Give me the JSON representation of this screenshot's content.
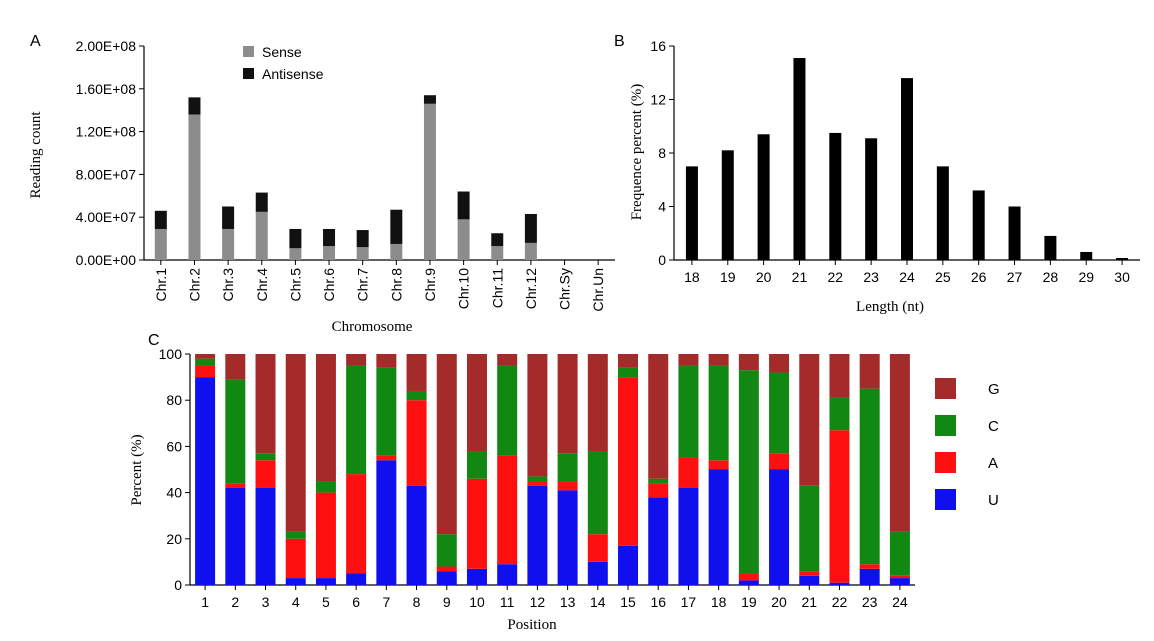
{
  "chart_data": [
    {
      "panel_label": "A",
      "type": "bar",
      "stacked": true,
      "categories": [
        "Chr.1",
        "Chr.2",
        "Chr.3",
        "Chr.4",
        "Chr.5",
        "Chr.6",
        "Chr.7",
        "Chr.8",
        "Chr.9",
        "Chr.10",
        "Chr.11",
        "Chr.12",
        "Chr.Sy",
        "Chr.Un"
      ],
      "series": [
        {
          "name": "Sense",
          "color": "#8c8c8c",
          "values": [
            29000000,
            136000000,
            29000000,
            45000000,
            11000000,
            13000000,
            12000000,
            15000000,
            146000000,
            38000000,
            13000000,
            16000000,
            0,
            0
          ]
        },
        {
          "name": "Antisense",
          "color": "#111111",
          "values": [
            17000000,
            16000000,
            21000000,
            18000000,
            18000000,
            16000000,
            16000000,
            32000000,
            8000000,
            26000000,
            12000000,
            27000000,
            0,
            0
          ]
        }
      ],
      "xlabel": "Chromosome",
      "ylabel": "Reading count",
      "ylim": [
        0,
        200000000
      ],
      "yticks": [
        "0.00E+00",
        "4.00E+07",
        "8.00E+07",
        "1.20E+08",
        "1.60E+08",
        "2.00E+08"
      ],
      "legend_position": "top-left"
    },
    {
      "panel_label": "B",
      "type": "bar",
      "categories": [
        "18",
        "19",
        "20",
        "21",
        "22",
        "23",
        "24",
        "25",
        "26",
        "27",
        "28",
        "29",
        "30"
      ],
      "values": [
        7.0,
        8.2,
        9.4,
        15.1,
        9.5,
        9.1,
        13.6,
        7.0,
        5.2,
        4.0,
        1.8,
        0.6,
        0.15
      ],
      "color": "#000000",
      "xlabel": "Length (nt)",
      "ylabel": "Frequence percent (%)",
      "ylim": [
        0,
        16
      ],
      "yticks": [
        "0",
        "4",
        "8",
        "12",
        "16"
      ]
    },
    {
      "panel_label": "C",
      "type": "bar",
      "stacked": true,
      "categories": [
        "1",
        "2",
        "3",
        "4",
        "5",
        "6",
        "7",
        "8",
        "9",
        "10",
        "11",
        "12",
        "13",
        "14",
        "15",
        "16",
        "17",
        "18",
        "19",
        "20",
        "21",
        "22",
        "23",
        "24"
      ],
      "series": [
        {
          "name": "U",
          "color": "#1010ee",
          "values": [
            90,
            42,
            42,
            3,
            3,
            5,
            54,
            43,
            6,
            7,
            9,
            43,
            41,
            10,
            17,
            38,
            42,
            50,
            2,
            50,
            4,
            1,
            7,
            3
          ]
        },
        {
          "name": "A",
          "color": "#ff1010",
          "values": [
            5,
            2,
            12,
            17,
            37,
            43,
            2,
            37,
            2,
            39,
            47,
            2,
            4,
            12,
            73,
            6,
            13,
            4,
            3,
            7,
            2,
            66,
            2,
            1
          ]
        },
        {
          "name": "C",
          "color": "#118811",
          "values": [
            3,
            45,
            3,
            3,
            5,
            47,
            38,
            4,
            14,
            12,
            39,
            2,
            12,
            36,
            4,
            2,
            40,
            41,
            88,
            35,
            37,
            14,
            76,
            19
          ]
        },
        {
          "name": "G",
          "color": "#a52a2a",
          "values": [
            2,
            11,
            43,
            77,
            55,
            5,
            6,
            16,
            78,
            42,
            5,
            53,
            43,
            42,
            6,
            54,
            5,
            5,
            7,
            8,
            57,
            19,
            15,
            77
          ]
        }
      ],
      "xlabel": "Position",
      "ylabel": "Percent (%)",
      "ylim": [
        0,
        100
      ],
      "yticks": [
        "0",
        "20",
        "40",
        "60",
        "80",
        "100"
      ],
      "legend_order": [
        "G",
        "C",
        "A",
        "U"
      ],
      "legend_position": "right"
    }
  ]
}
